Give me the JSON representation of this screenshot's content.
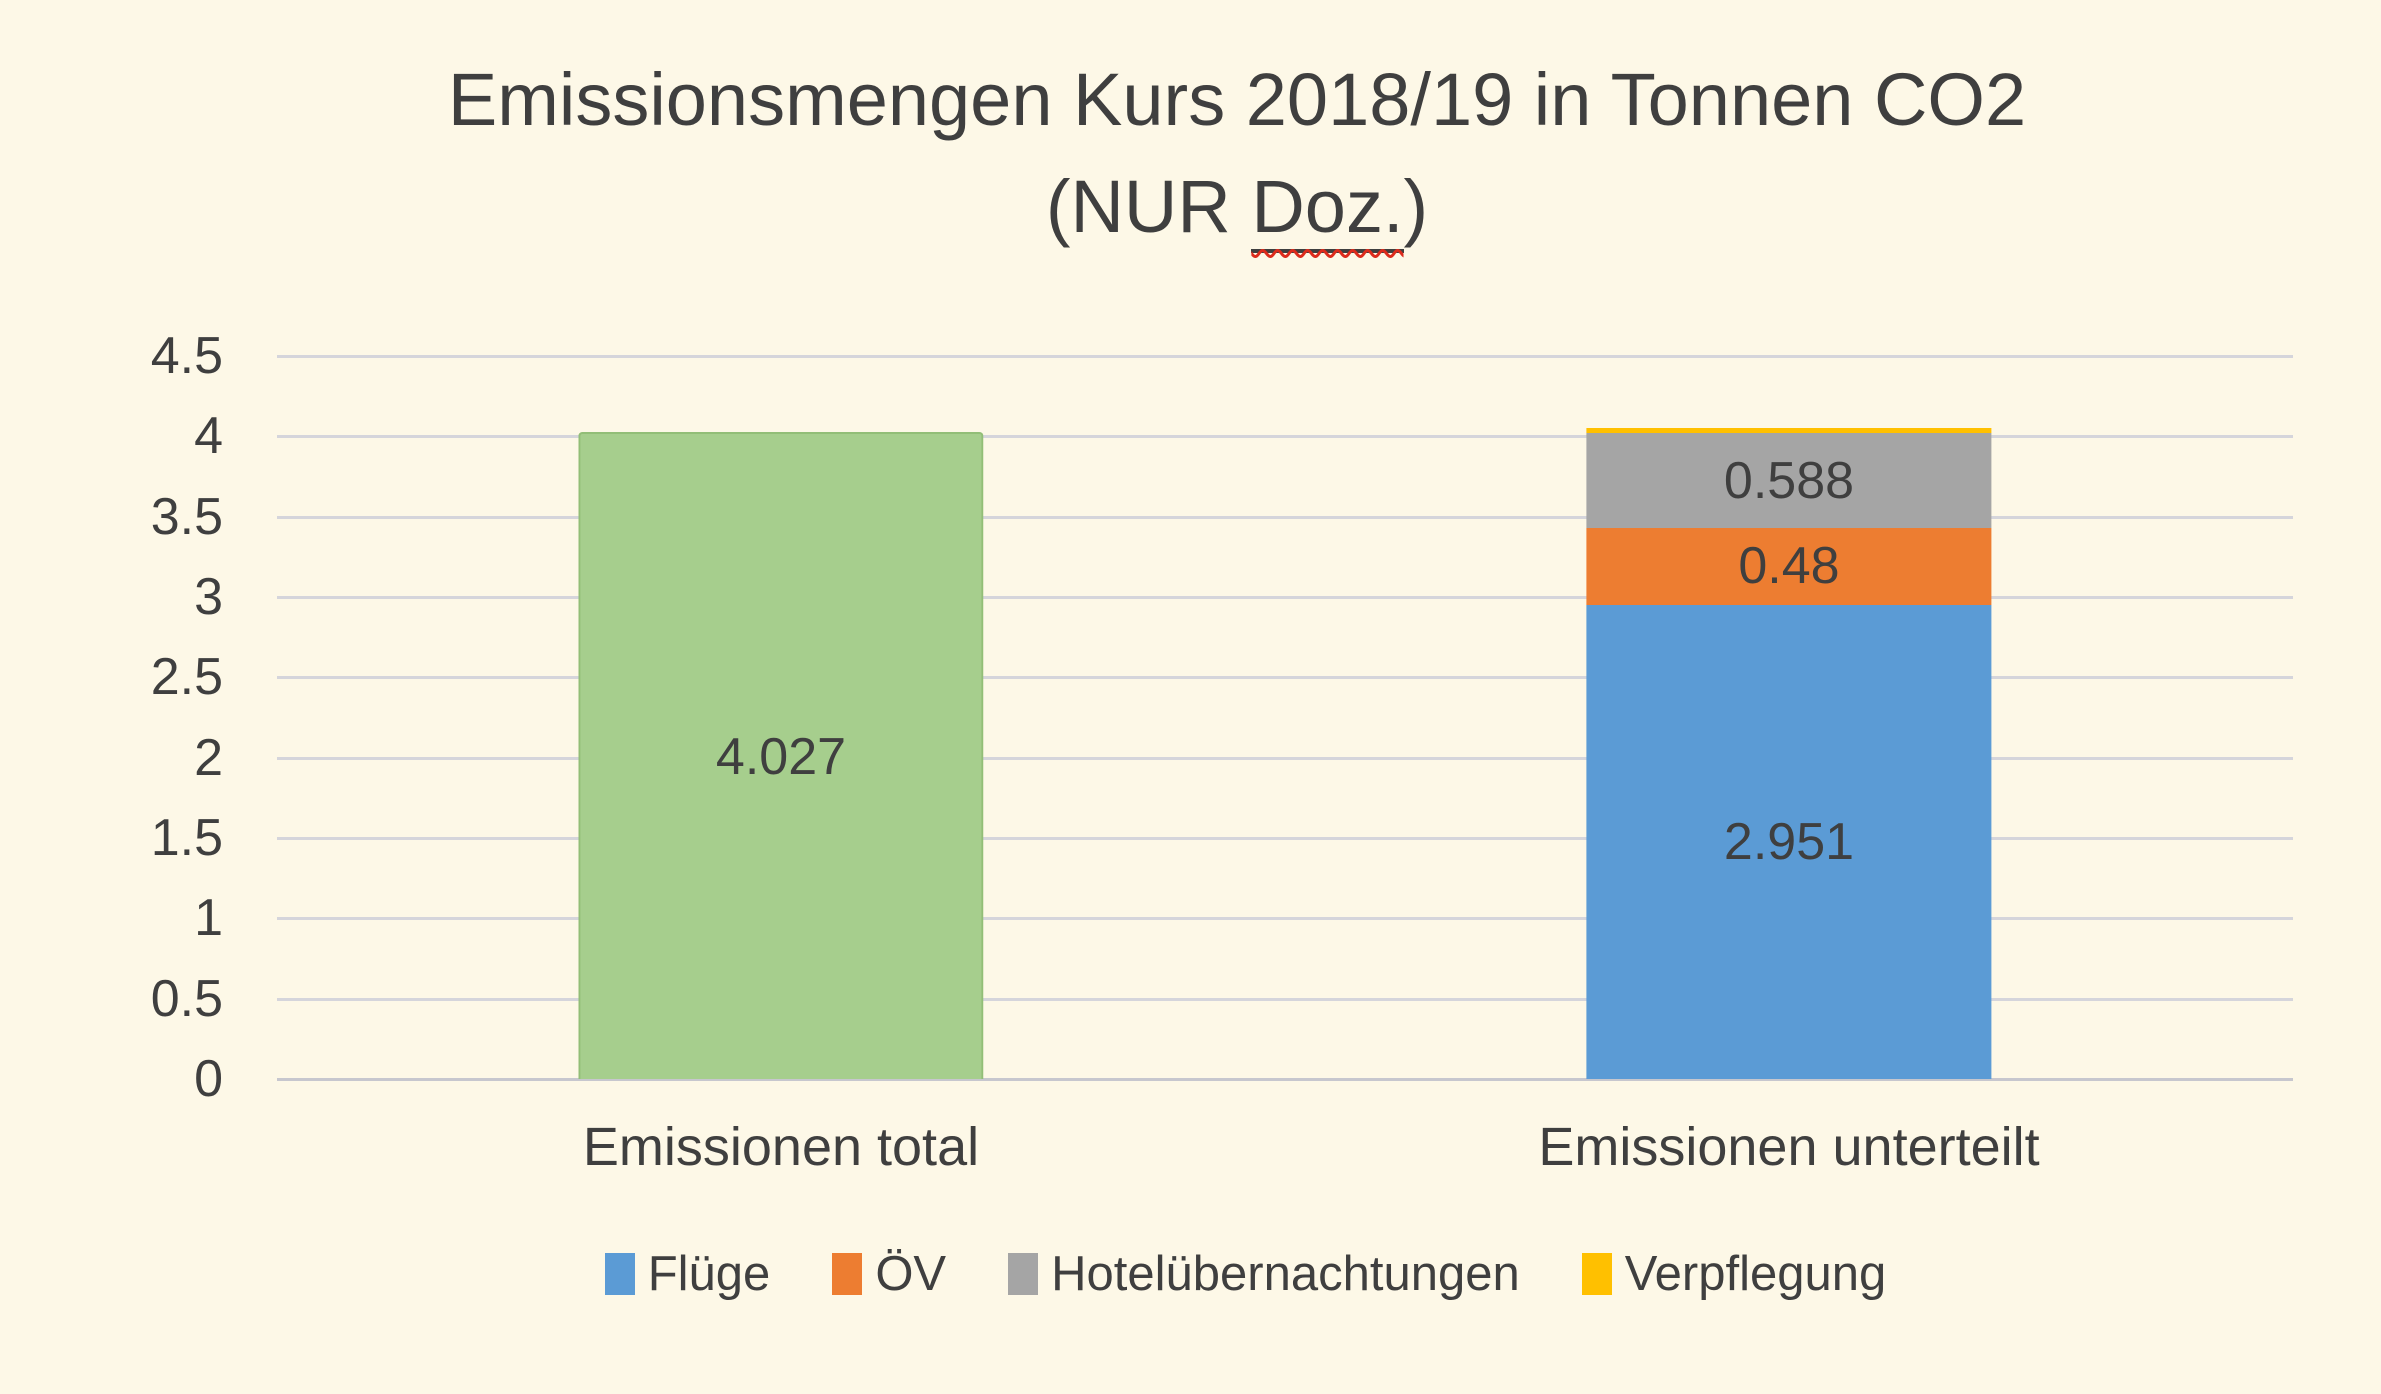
{
  "title": {
    "line1": "Emissionsmengen Kurs 2018/19 in Tonnen CO2",
    "line2_prefix": "(NUR ",
    "line2_underlined": "Doz.",
    "line2_suffix": ")"
  },
  "colors": {
    "background": "#FDF8E7",
    "text": "#3F3F3F",
    "gridline": "#D5D5DB",
    "axis_line": "#C7C7CE",
    "green": "#A6CE8D",
    "blue": "#5B9BD5",
    "orange": "#ED7D31",
    "gray": "#A5A5A5",
    "yellow": "#FFC000",
    "squiggle_red": "#DC2B1C"
  },
  "chart_data": {
    "type": "bar",
    "subtype": "stacked-column",
    "title": "Emissionsmengen Kurs 2018/19 in Tonnen CO2 (NUR Doz.)",
    "xlabel": "",
    "ylabel": "",
    "ylim": [
      0,
      4.5
    ],
    "grid": true,
    "legend_position": "bottom",
    "y_axis": {
      "min": 0,
      "max": 4.5,
      "step": 0.5,
      "ticks": [
        "4.5",
        "4",
        "3.5",
        "3",
        "2.5",
        "2",
        "1.5",
        "1",
        "0.5",
        "0"
      ]
    },
    "categories": [
      "Emissionen total",
      "Emissionen unterteilt"
    ],
    "bars": [
      {
        "category": "Emissionen total",
        "segments": [
          {
            "name": "Emissionen total",
            "value": 4.027,
            "label": "4.027",
            "color": "#A6CE8D",
            "single": true
          }
        ]
      },
      {
        "category": "Emissionen unterteilt",
        "segments": [
          {
            "name": "Flüge",
            "value": 2.951,
            "label": "2.951",
            "color": "#5B9BD5",
            "single": false
          },
          {
            "name": "ÖV",
            "value": 0.48,
            "label": "0.48",
            "color": "#ED7D31",
            "single": false
          },
          {
            "name": "Hotelübernachtungen",
            "value": 0.588,
            "label": "0.588",
            "color": "#A5A5A5",
            "single": false
          },
          {
            "name": "Verpflegung",
            "value": 0.008,
            "label": "",
            "color": "#FFC000",
            "single": false
          }
        ]
      }
    ],
    "legend": [
      {
        "label": "Flüge",
        "color": "#5B9BD5"
      },
      {
        "label": "ÖV",
        "color": "#ED7D31"
      },
      {
        "label": "Hotelübernachtungen",
        "color": "#A5A5A5"
      },
      {
        "label": "Verpflegung",
        "color": "#FFC000"
      }
    ]
  }
}
